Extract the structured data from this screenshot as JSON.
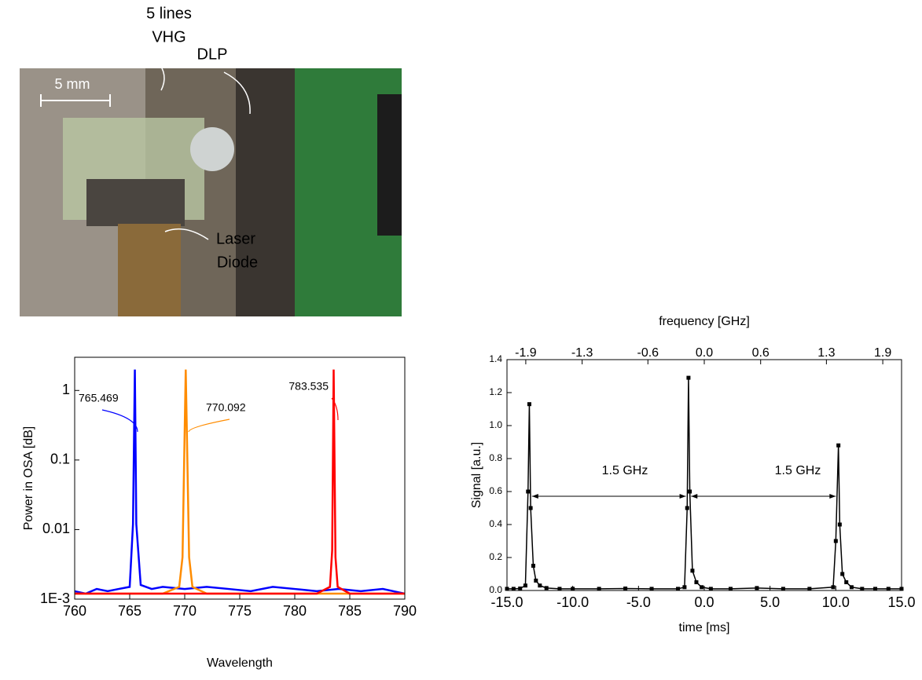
{
  "photo": {
    "vhg_label": [
      "5 lines",
      "VHG"
    ],
    "dlp_label": "DLP",
    "scale_label": "5 mm",
    "diode_label": [
      "Laser",
      "Diode"
    ]
  },
  "chart_data": [
    {
      "type": "line",
      "ylabel": "Power in OSA [dB]",
      "xlabel": "Wavelength",
      "log_y": true,
      "xlim": [
        760,
        790
      ],
      "xticks": [
        760,
        765,
        770,
        775,
        780,
        785,
        790
      ],
      "ylim": [
        0.001,
        3
      ],
      "yticks": [
        {
          "value": 0.001,
          "label": "1E-3"
        },
        0.01,
        0.1,
        1
      ],
      "annotations": [
        "765.469",
        "770.092",
        "783.535"
      ],
      "series": [
        {
          "name": "765.469",
          "color": "#0000ff",
          "x": [
            760,
            761,
            762,
            763,
            764,
            765,
            765.3,
            765.469,
            765.6,
            766,
            767,
            768,
            770,
            772,
            774,
            776,
            778,
            780,
            782,
            784,
            786,
            788,
            790
          ],
          "values": [
            0.0013,
            0.0012,
            0.0014,
            0.0013,
            0.0014,
            0.0015,
            0.012,
            2,
            0.012,
            0.0016,
            0.0014,
            0.0015,
            0.0014,
            0.0015,
            0.0014,
            0.0013,
            0.0015,
            0.0014,
            0.0013,
            0.0014,
            0.0013,
            0.0014,
            0.0012
          ]
        },
        {
          "name": "770.092",
          "color": "#ff8c00",
          "x": [
            760,
            768,
            769.5,
            769.8,
            770.092,
            770.4,
            770.7,
            772,
            780,
            790
          ],
          "values": [
            0.0012,
            0.0012,
            0.0015,
            0.004,
            2,
            0.004,
            0.0015,
            0.0012,
            0.0012,
            0.0012
          ]
        },
        {
          "name": "783.535",
          "color": "#ff0000",
          "x": [
            760,
            782,
            783.2,
            783.4,
            783.535,
            783.7,
            783.9,
            785,
            790
          ],
          "values": [
            0.0012,
            0.0012,
            0.0015,
            0.005,
            2,
            0.004,
            0.0015,
            0.0012,
            0.0012
          ]
        }
      ]
    },
    {
      "type": "line",
      "ylabel": "Signal [a.u.]",
      "xlabel": "time [ms]",
      "x2label": "frequency [GHz]",
      "markers": true,
      "xlim": [
        -15,
        15
      ],
      "xticks": [
        {
          "value": -15,
          "label": "-15.0"
        },
        {
          "value": -10,
          "label": "-10.0"
        },
        {
          "value": -5,
          "label": "-5.0"
        },
        {
          "value": 0,
          "label": "0.0"
        },
        {
          "value": 5,
          "label": "5.0"
        },
        {
          "value": 10,
          "label": "10.0"
        },
        {
          "value": 15,
          "label": "15.0"
        }
      ],
      "x2lim": [
        -2.1,
        2.1
      ],
      "x2ticks": [
        -1.9,
        -1.3,
        -0.6,
        {
          "value": 0,
          "label": "0.0"
        },
        0.6,
        1.3,
        1.9
      ],
      "ylim": [
        0,
        1.4
      ],
      "yticks": [
        {
          "value": 0,
          "label": "0.0"
        },
        0.2,
        0.4,
        0.6,
        0.8,
        {
          "value": 1,
          "label": "1.0"
        },
        1.2,
        1.4
      ],
      "annotations": [
        "1.5 GHz",
        "1.5 GHz"
      ],
      "series": [
        {
          "name": "Signal",
          "color": "#000000",
          "x": [
            -15,
            -14.5,
            -14,
            -13.6,
            -13.4,
            -13.3,
            -13.2,
            -13.0,
            -12.8,
            -12.5,
            -12,
            -11,
            -10,
            -8,
            -6,
            -4,
            -2,
            -1.5,
            -1.3,
            -1.2,
            -1.1,
            -0.9,
            -0.6,
            -0.2,
            0.5,
            2,
            4,
            6,
            8,
            9.8,
            10.0,
            10.2,
            10.3,
            10.5,
            10.8,
            11.2,
            12,
            13,
            14,
            15
          ],
          "values": [
            0.01,
            0.01,
            0.012,
            0.03,
            0.6,
            1.13,
            0.5,
            0.15,
            0.06,
            0.03,
            0.015,
            0.01,
            0.01,
            0.01,
            0.012,
            0.01,
            0.01,
            0.02,
            0.5,
            1.29,
            0.6,
            0.12,
            0.05,
            0.02,
            0.01,
            0.01,
            0.015,
            0.01,
            0.01,
            0.02,
            0.3,
            0.88,
            0.4,
            0.1,
            0.05,
            0.02,
            0.01,
            0.01,
            0.01,
            0.01
          ]
        }
      ]
    }
  ]
}
